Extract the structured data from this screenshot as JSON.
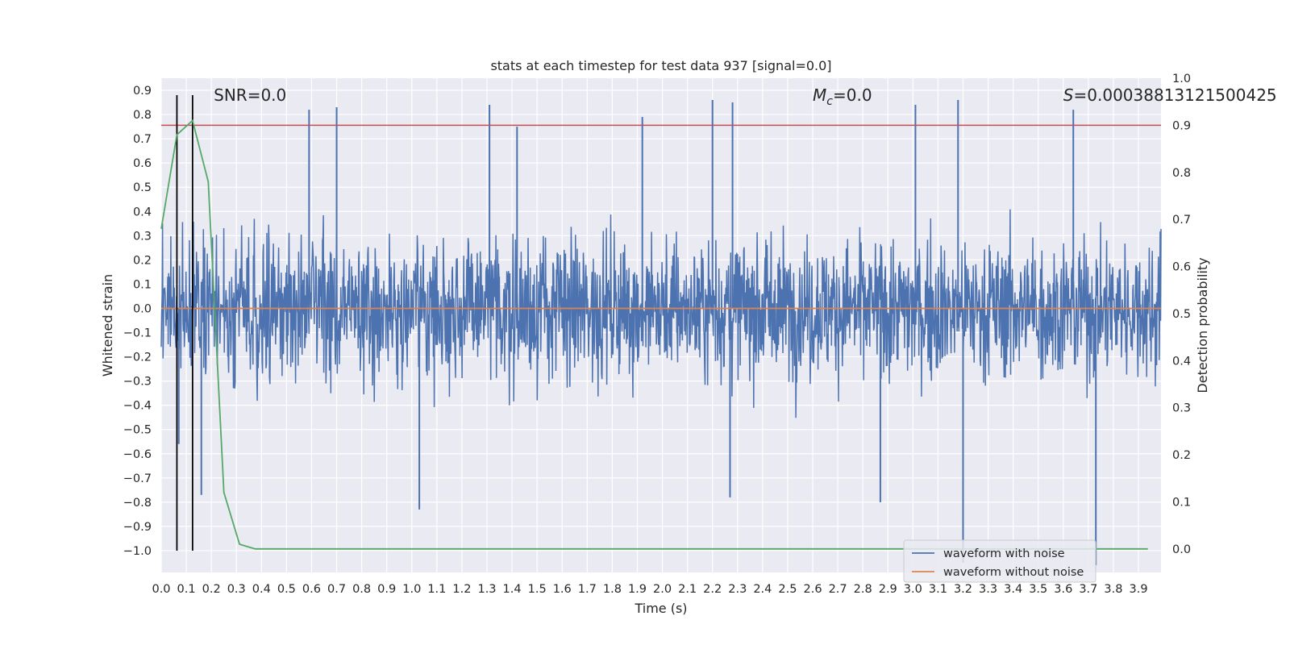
{
  "chart_data": {
    "type": "line",
    "title": "stats at each timestep for test data 937 [signal=0.0]",
    "xlabel": "Time (s)",
    "ylabel": "Whitened strain",
    "y2label": "Detection probability",
    "xlim": [
      0.0,
      3.99
    ],
    "ylim": [
      -1.09,
      0.95
    ],
    "y2lim": [
      -0.05,
      1.0
    ],
    "x_ticks": [
      0.0,
      0.1,
      0.2,
      0.3,
      0.4,
      0.5,
      0.6,
      0.7,
      0.8,
      0.9,
      1.0,
      1.1,
      1.2,
      1.3,
      1.4,
      1.5,
      1.6,
      1.7,
      1.8,
      1.9,
      2.0,
      2.1,
      2.2,
      2.3,
      2.4,
      2.5,
      2.6,
      2.7,
      2.8,
      2.9,
      3.0,
      3.1,
      3.2,
      3.3,
      3.4,
      3.5,
      3.6,
      3.7,
      3.8,
      3.9
    ],
    "x_tick_labels": [
      "0.0",
      "0.1",
      "0.2",
      "0.3",
      "0.4",
      "0.5",
      "0.6",
      "0.7",
      "0.8",
      "0.9",
      "1.0",
      "1.1",
      "1.2",
      "1.3",
      "1.4",
      "1.5",
      "1.6",
      "1.7",
      "1.8",
      "1.9",
      "2.0",
      "2.1",
      "2.2",
      "2.3",
      "2.4",
      "2.5",
      "2.6",
      "2.7",
      "2.8",
      "2.9",
      "3.0",
      "3.1",
      "3.2",
      "3.3",
      "3.4",
      "3.5",
      "3.6",
      "3.7",
      "3.8",
      "3.9"
    ],
    "y_ticks": [
      -1.0,
      -0.9,
      -0.8,
      -0.7,
      -0.6,
      -0.5,
      -0.4,
      -0.3,
      -0.2,
      -0.1,
      0.0,
      0.1,
      0.2,
      0.3,
      0.4,
      0.5,
      0.6,
      0.7,
      0.8,
      0.9
    ],
    "y_tick_labels": [
      "−1.0",
      "−0.9",
      "−0.8",
      "−0.7",
      "−0.6",
      "−0.5",
      "−0.4",
      "−0.3",
      "−0.2",
      "−0.1",
      "0.0",
      "0.1",
      "0.2",
      "0.3",
      "0.4",
      "0.5",
      "0.6",
      "0.7",
      "0.8",
      "0.9"
    ],
    "y2_ticks": [
      0.0,
      0.1,
      0.2,
      0.3,
      0.4,
      0.5,
      0.6,
      0.7,
      0.8,
      0.9,
      1.0
    ],
    "y2_tick_labels": [
      "0.0",
      "0.1",
      "0.2",
      "0.3",
      "0.4",
      "0.5",
      "0.6",
      "0.7",
      "0.8",
      "0.9",
      "1.0"
    ],
    "grid": true,
    "legend_position": "lower-right",
    "series": [
      {
        "name": "waveform with noise",
        "color": "#4c72b0",
        "axis": "left",
        "description_values": "dense noise spanning approx -0.65 to 0.65 with spikes",
        "peaks_x": [
          0.59,
          0.7,
          1.31,
          1.42,
          1.92,
          2.2,
          2.28,
          3.01,
          3.18,
          3.64
        ],
        "peaks_y": [
          0.82,
          0.83,
          0.84,
          0.75,
          0.79,
          0.86,
          0.85,
          0.84,
          0.86,
          0.82
        ],
        "troughs_x": [
          0.07,
          0.16,
          1.03,
          2.27,
          2.87,
          3.2,
          3.73
        ],
        "troughs_y": [
          -0.56,
          -0.77,
          -0.83,
          -0.78,
          -0.8,
          -1.05,
          -1.06
        ]
      },
      {
        "name": "waveform without noise",
        "color": "#dd8452",
        "axis": "left",
        "x": [
          0.0,
          3.99
        ],
        "y": [
          0.0,
          0.0
        ]
      },
      {
        "name": "",
        "color": "#55a868",
        "axis": "right",
        "x": [
          0.0,
          0.0625,
          0.125,
          0.1875,
          0.25,
          0.3125,
          0.375,
          0.4375,
          0.5,
          3.9375
        ],
        "y": [
          0.68,
          0.88,
          0.91,
          0.78,
          0.12,
          0.01,
          0.0,
          0.0,
          0.0,
          0.0
        ]
      }
    ],
    "threshold": {
      "value": 0.9,
      "axis": "right",
      "color": "#c44e52"
    },
    "vlines": {
      "x": [
        0.0625,
        0.125
      ],
      "color": "#000000",
      "ymin": -1.0,
      "ymax": 0.88
    },
    "annotations": [
      {
        "text": "SNR=0.0",
        "x": 0.2,
        "y": 0.88
      },
      {
        "text_main": "M",
        "text_sub": "c",
        "text_rest": "=0.0",
        "x": 2.6,
        "y": 0.88
      },
      {
        "text_main": "S",
        "text_rest": "=0.00038813121500425",
        "x": 3.6,
        "y": 0.88
      }
    ]
  }
}
